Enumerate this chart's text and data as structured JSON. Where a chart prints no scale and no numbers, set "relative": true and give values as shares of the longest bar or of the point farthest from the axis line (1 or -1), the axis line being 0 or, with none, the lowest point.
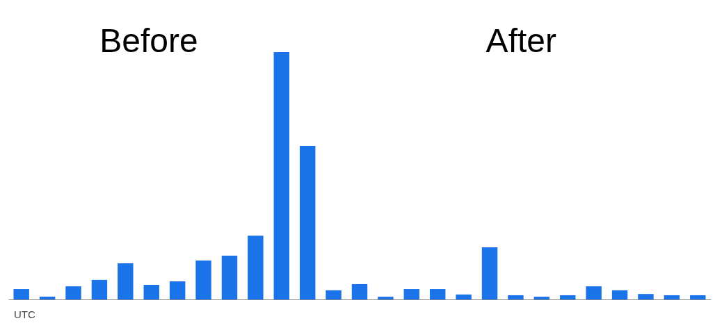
{
  "chart_data": {
    "type": "bar",
    "relative": true,
    "color": "#1a73e8",
    "categories": [
      null,
      null,
      null,
      null,
      null,
      null,
      null,
      null,
      null,
      null,
      null,
      null,
      null,
      null,
      null,
      null,
      null,
      null,
      null,
      null,
      null,
      null,
      null,
      null,
      null,
      null,
      null
    ],
    "values": [
      0.042,
      0.011,
      0.053,
      0.079,
      0.146,
      0.059,
      0.073,
      0.157,
      0.177,
      0.258,
      1,
      0.621,
      0.037,
      0.062,
      0.011,
      0.042,
      0.042,
      0.02,
      0.211,
      0.017,
      0.011,
      0.017,
      0.053,
      0.037,
      0.022,
      0.017,
      0.017
    ],
    "annotations": [
      "Before",
      "After",
      "UTC"
    ]
  }
}
